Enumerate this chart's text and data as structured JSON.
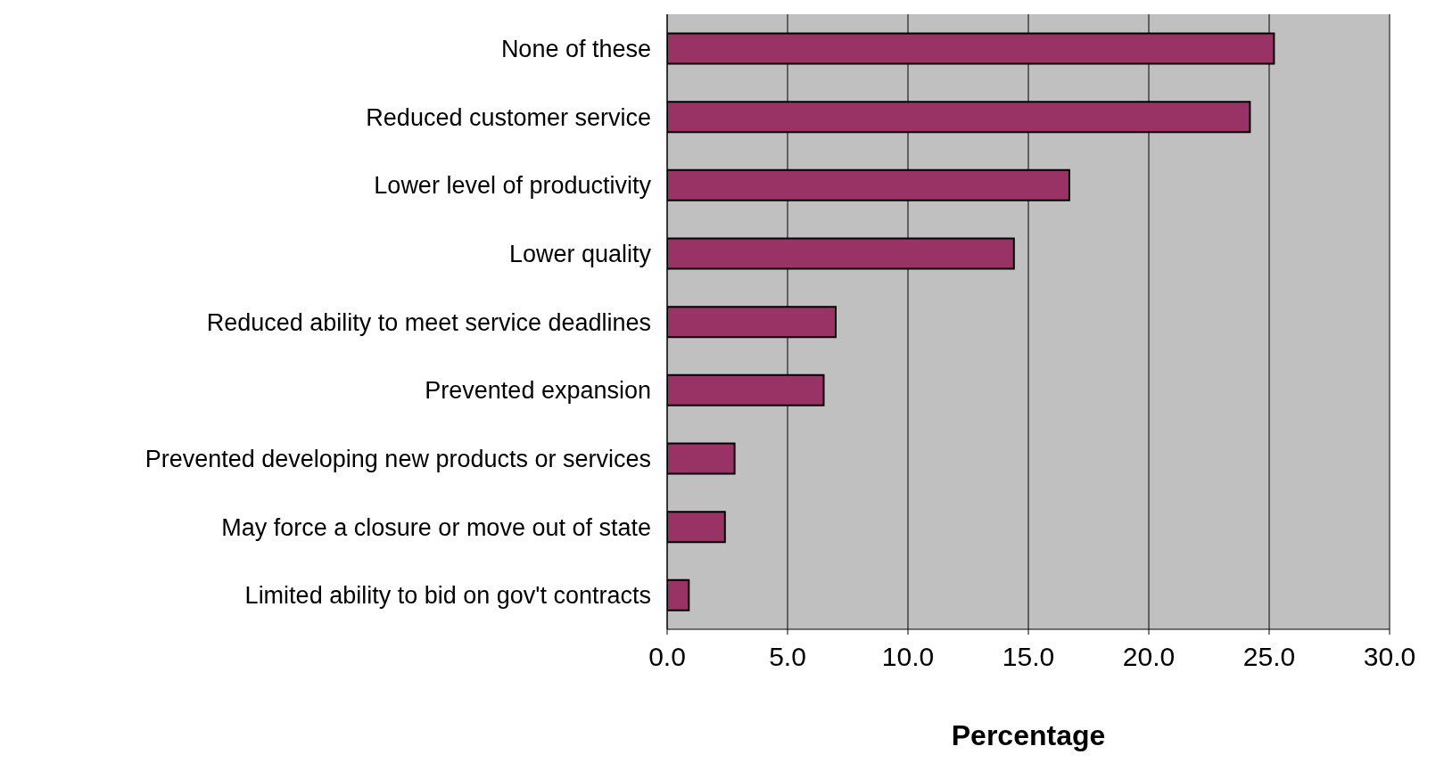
{
  "chart_data": {
    "type": "bar",
    "orientation": "horizontal",
    "xlabel": "Percentage",
    "categories": [
      "None of these",
      "Reduced customer service",
      "Lower level of productivity",
      "Lower quality",
      "Reduced ability to meet service deadlines",
      "Prevented expansion",
      "Prevented developing new products or services",
      "May force a closure or move out of state",
      "Limited ability to bid on gov't contracts"
    ],
    "values": [
      25.2,
      24.2,
      16.7,
      14.4,
      7.0,
      6.5,
      2.8,
      2.4,
      0.9
    ],
    "color": "#993366",
    "xlim": [
      0,
      30
    ],
    "xticks": [
      {
        "value": 0,
        "label": "0.0"
      },
      {
        "value": 5,
        "label": "5.0"
      },
      {
        "value": 10,
        "label": "10.0"
      },
      {
        "value": 15,
        "label": "15.0"
      },
      {
        "value": 20,
        "label": "20.0"
      },
      {
        "value": 25,
        "label": "25.0"
      },
      {
        "value": 30,
        "label": "30.0"
      }
    ],
    "grid": "x"
  }
}
